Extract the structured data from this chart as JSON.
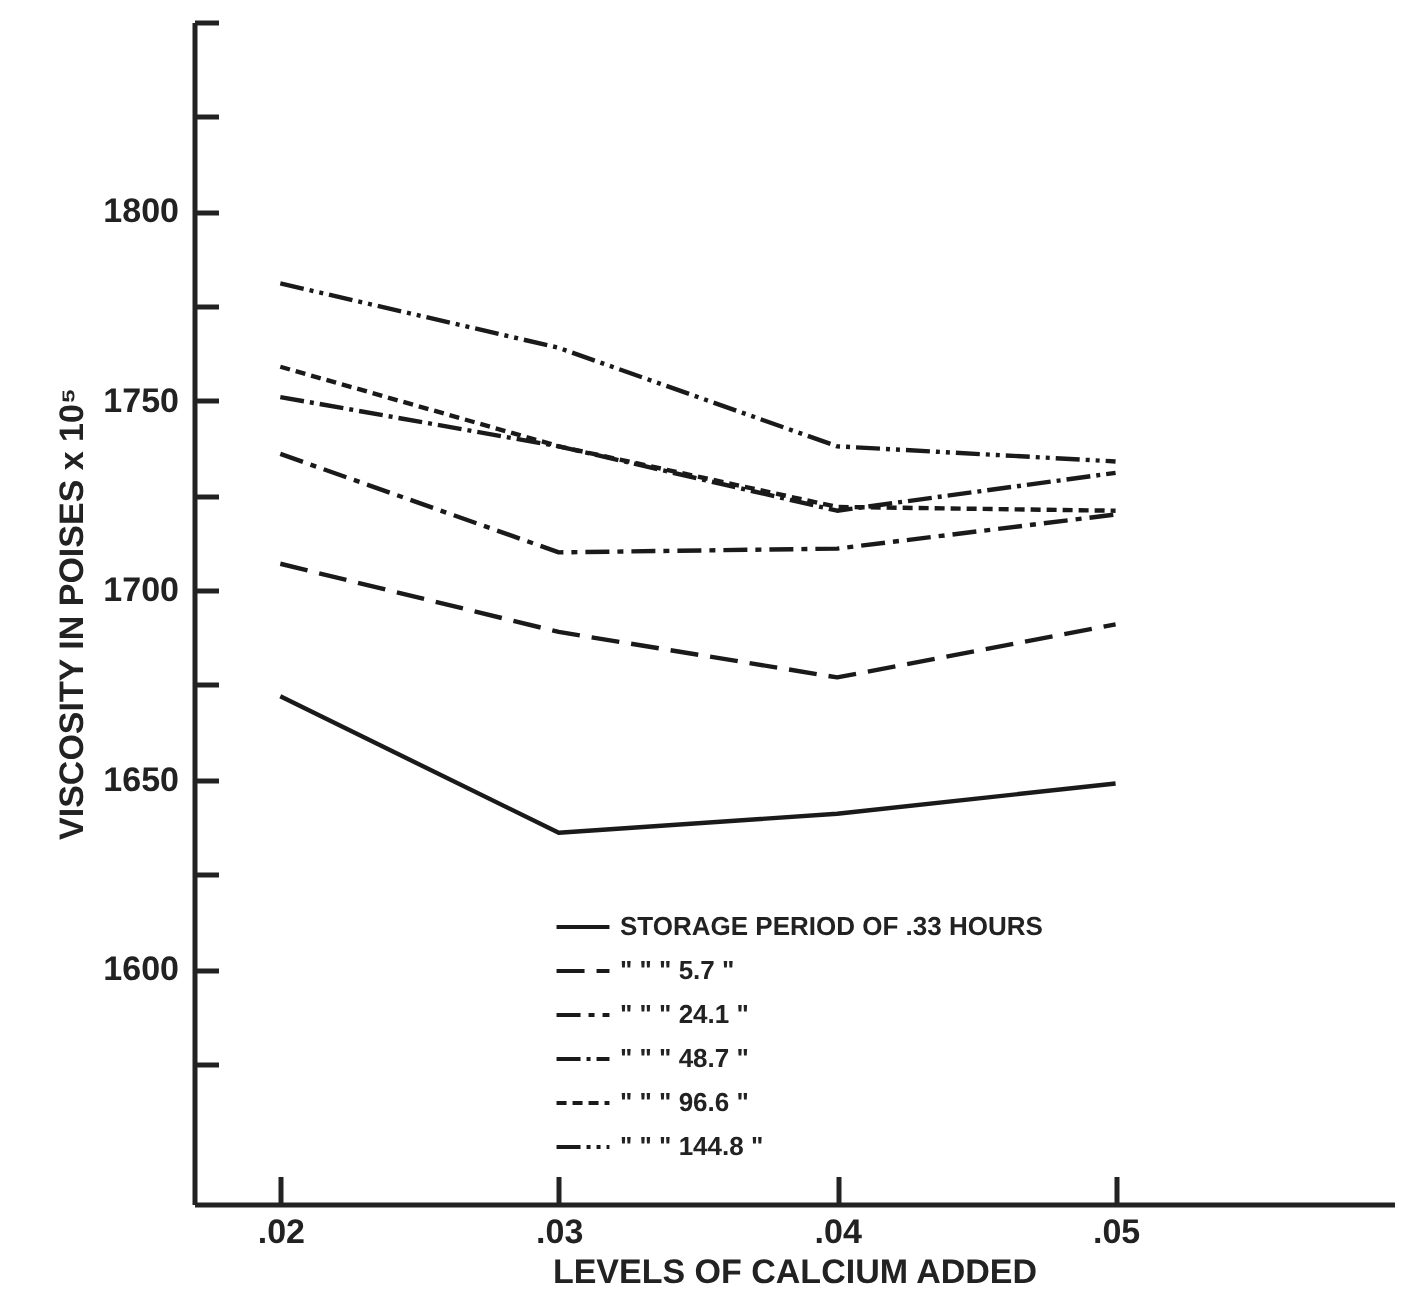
{
  "chart_data": {
    "type": "line",
    "xlabel": "LEVELS OF CALCIUM ADDED",
    "ylabel": "VISCOSITY IN POISES x 10⁵",
    "x": [
      0.02,
      0.03,
      0.04,
      0.05
    ],
    "xlim": [
      0.0169,
      0.06
    ],
    "xticks": [
      {
        "value": 0.02,
        "label": ".02"
      },
      {
        "value": 0.03,
        "label": ".03"
      },
      {
        "value": 0.04,
        "label": ".04"
      },
      {
        "value": 0.05,
        "label": ".05"
      }
    ],
    "ylim": [
      1538,
      1850
    ],
    "yticks": [
      {
        "value": 1575,
        "label": null
      },
      1600,
      {
        "value": 1625,
        "label": null
      },
      1650,
      {
        "value": 1675,
        "label": null
      },
      1700,
      {
        "value": 1725,
        "label": null
      },
      1750,
      {
        "value": 1775,
        "label": null
      },
      1800,
      {
        "value": 1825,
        "label": null
      },
      {
        "value": 1850,
        "label": null
      }
    ],
    "grid": false,
    "legend": "bottom right",
    "marker": "none",
    "series": [
      {
        "name": "STORAGE PERIOD OF .33 HOURS",
        "color": "#1a1a1a",
        "line_style": "solid",
        "values": [
          1672,
          1636,
          1641,
          1649
        ]
      },
      {
        "name": "\" \" \" 5.7 \"",
        "color": "#1a1a1a",
        "line_style": "dashed",
        "values": [
          1707,
          1689,
          1677,
          1691
        ]
      },
      {
        "name": "\" \" \" 24.1 \"",
        "color": "#1a1a1a",
        "line_style": "dashed",
        "values": [
          1736,
          1710,
          1711,
          1720
        ]
      },
      {
        "name": "\" \" \" 48.7 \"",
        "color": "#1a1a1a",
        "line_style": "dashed",
        "values": [
          1751,
          1738,
          1721,
          1731
        ]
      },
      {
        "name": "\" \" \" 96.6 \"",
        "color": "#1a1a1a",
        "line_style": "dotted",
        "values": [
          1759,
          1738,
          1722,
          1721
        ]
      },
      {
        "name": "\" \" \" 144.8 \"",
        "color": "#1a1a1a",
        "line_style": "dashed",
        "values": [
          1781,
          1764,
          1738,
          1734
        ]
      }
    ]
  }
}
